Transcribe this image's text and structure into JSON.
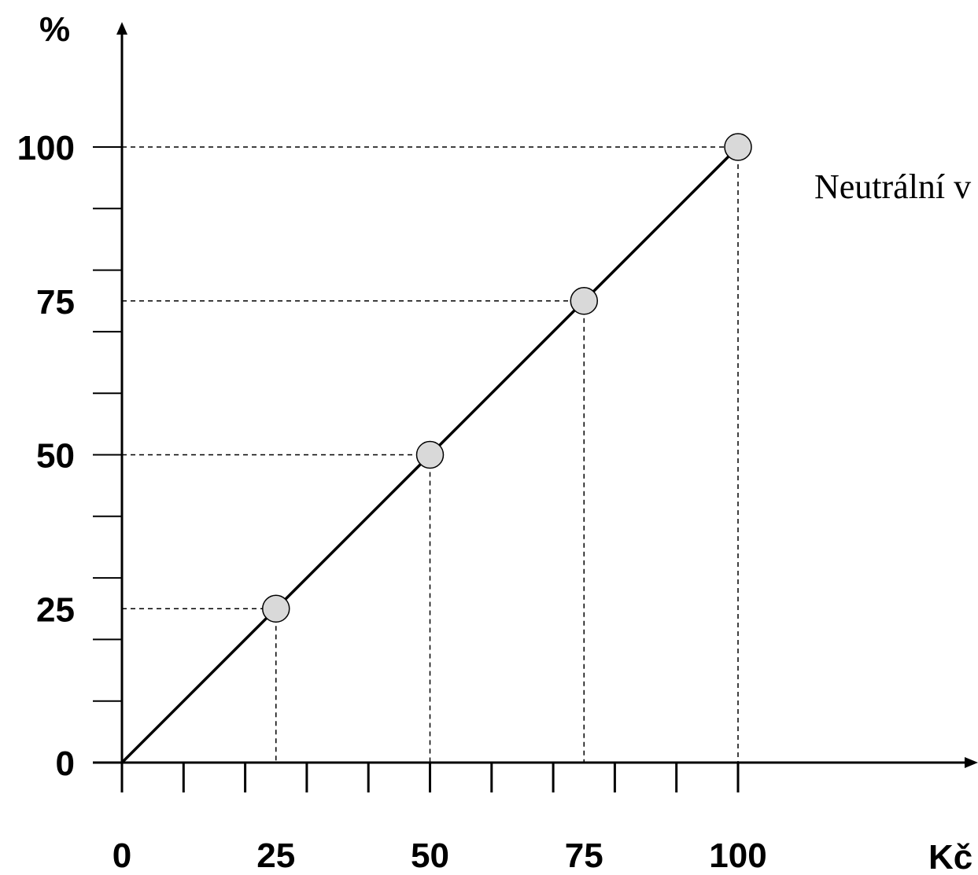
{
  "chart_data": {
    "type": "line",
    "ylabel": "%",
    "xlabel": "Kč",
    "xlim": [
      0,
      100
    ],
    "ylim": [
      0,
      100
    ],
    "x_ticks": [
      0,
      25,
      50,
      75,
      100
    ],
    "y_ticks": [
      0,
      25,
      50,
      75,
      100
    ],
    "series": [
      {
        "x": [
          0,
          100
        ],
        "y": [
          0,
          100
        ]
      }
    ],
    "points": [
      {
        "x": 25,
        "y": 25
      },
      {
        "x": 50,
        "y": 50
      },
      {
        "x": 75,
        "y": 75
      },
      {
        "x": 100,
        "y": 100
      }
    ],
    "annotation": "Neutrální v",
    "colors": {
      "line": "#000000",
      "marker_fill": "#d9d9d9",
      "marker_stroke": "#000000"
    }
  }
}
